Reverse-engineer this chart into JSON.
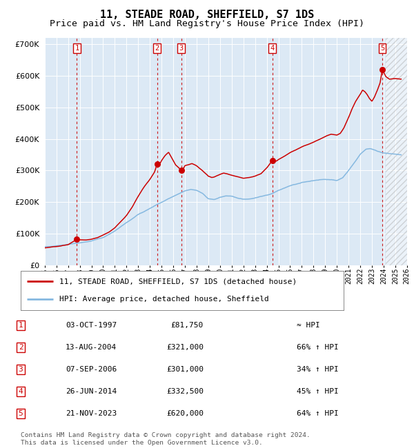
{
  "title": "11, STEADE ROAD, SHEFFIELD, S7 1DS",
  "subtitle": "Price paid vs. HM Land Registry's House Price Index (HPI)",
  "title_fontsize": 11,
  "subtitle_fontsize": 9.5,
  "background_color": "#dce9f5",
  "hpi_line_color": "#85b8e0",
  "price_line_color": "#cc0000",
  "marker_color": "#cc0000",
  "vline_color": "#cc0000",
  "ylim": [
    0,
    720000
  ],
  "yticks": [
    0,
    100000,
    200000,
    300000,
    400000,
    500000,
    600000,
    700000
  ],
  "xlim_start": 1995.0,
  "xlim_end": 2026.0,
  "hatch_start": 2024.2,
  "sales": [
    {
      "num": 1,
      "date_str": "03-OCT-1997",
      "year": 1997.75,
      "price": 81750,
      "hpi_pct": "≈ HPI"
    },
    {
      "num": 2,
      "date_str": "13-AUG-2004",
      "year": 2004.62,
      "price": 321000,
      "hpi_pct": "66% ↑ HPI"
    },
    {
      "num": 3,
      "date_str": "07-SEP-2006",
      "year": 2006.69,
      "price": 301000,
      "hpi_pct": "34% ↑ HPI"
    },
    {
      "num": 4,
      "date_str": "26-JUN-2014",
      "year": 2014.49,
      "price": 332500,
      "hpi_pct": "45% ↑ HPI"
    },
    {
      "num": 5,
      "date_str": "21-NOV-2023",
      "year": 2023.89,
      "price": 620000,
      "hpi_pct": "64% ↑ HPI"
    }
  ],
  "legend_line1": "11, STEADE ROAD, SHEFFIELD, S7 1DS (detached house)",
  "legend_line2": "HPI: Average price, detached house, Sheffield",
  "footer1": "Contains HM Land Registry data © Crown copyright and database right 2024.",
  "footer2": "This data is licensed under the Open Government Licence v3.0.",
  "hpi_anchors": [
    [
      1995.0,
      58000
    ],
    [
      1996.0,
      62000
    ],
    [
      1997.0,
      66000
    ],
    [
      1998.0,
      71000
    ],
    [
      1999.0,
      77000
    ],
    [
      2000.0,
      88000
    ],
    [
      2001.0,
      108000
    ],
    [
      2002.0,
      135000
    ],
    [
      2003.0,
      160000
    ],
    [
      2004.0,
      180000
    ],
    [
      2005.0,
      200000
    ],
    [
      2006.0,
      218000
    ],
    [
      2007.0,
      235000
    ],
    [
      2007.5,
      240000
    ],
    [
      2008.0,
      238000
    ],
    [
      2008.5,
      228000
    ],
    [
      2009.0,
      210000
    ],
    [
      2009.5,
      208000
    ],
    [
      2010.0,
      215000
    ],
    [
      2010.5,
      220000
    ],
    [
      2011.0,
      218000
    ],
    [
      2011.5,
      213000
    ],
    [
      2012.0,
      210000
    ],
    [
      2012.5,
      210000
    ],
    [
      2013.0,
      213000
    ],
    [
      2013.5,
      218000
    ],
    [
      2014.0,
      222000
    ],
    [
      2014.5,
      228000
    ],
    [
      2015.0,
      238000
    ],
    [
      2015.5,
      245000
    ],
    [
      2016.0,
      252000
    ],
    [
      2016.5,
      257000
    ],
    [
      2017.0,
      262000
    ],
    [
      2017.5,
      265000
    ],
    [
      2018.0,
      268000
    ],
    [
      2018.5,
      270000
    ],
    [
      2019.0,
      272000
    ],
    [
      2019.5,
      272000
    ],
    [
      2020.0,
      268000
    ],
    [
      2020.5,
      278000
    ],
    [
      2021.0,
      300000
    ],
    [
      2021.5,
      325000
    ],
    [
      2022.0,
      352000
    ],
    [
      2022.5,
      368000
    ],
    [
      2022.8,
      370000
    ],
    [
      2023.0,
      368000
    ],
    [
      2023.5,
      362000
    ],
    [
      2024.0,
      355000
    ],
    [
      2025.0,
      352000
    ],
    [
      2025.5,
      350000
    ]
  ],
  "price_anchors": [
    [
      1995.0,
      55000
    ],
    [
      1995.5,
      57000
    ],
    [
      1996.0,
      59000
    ],
    [
      1996.5,
      62000
    ],
    [
      1997.0,
      65000
    ],
    [
      1997.75,
      81750
    ],
    [
      1998.0,
      80000
    ],
    [
      1998.5,
      79000
    ],
    [
      1999.0,
      82000
    ],
    [
      1999.5,
      87000
    ],
    [
      2000.0,
      96000
    ],
    [
      2000.5,
      105000
    ],
    [
      2001.0,
      118000
    ],
    [
      2001.5,
      138000
    ],
    [
      2002.0,
      158000
    ],
    [
      2002.5,
      185000
    ],
    [
      2003.0,
      218000
    ],
    [
      2003.5,
      248000
    ],
    [
      2004.0,
      272000
    ],
    [
      2004.4,
      295000
    ],
    [
      2004.62,
      321000
    ],
    [
      2004.9,
      325000
    ],
    [
      2005.0,
      332000
    ],
    [
      2005.3,
      348000
    ],
    [
      2005.6,
      358000
    ],
    [
      2005.9,
      338000
    ],
    [
      2006.2,
      318000
    ],
    [
      2006.5,
      308000
    ],
    [
      2006.69,
      301000
    ],
    [
      2006.9,
      308000
    ],
    [
      2007.0,
      315000
    ],
    [
      2007.3,
      318000
    ],
    [
      2007.6,
      322000
    ],
    [
      2008.0,
      315000
    ],
    [
      2008.5,
      300000
    ],
    [
      2009.0,
      282000
    ],
    [
      2009.3,
      278000
    ],
    [
      2009.5,
      280000
    ],
    [
      2009.8,
      285000
    ],
    [
      2010.0,
      288000
    ],
    [
      2010.3,
      292000
    ],
    [
      2010.6,
      290000
    ],
    [
      2011.0,
      285000
    ],
    [
      2011.5,
      280000
    ],
    [
      2012.0,
      276000
    ],
    [
      2012.5,
      278000
    ],
    [
      2013.0,
      282000
    ],
    [
      2013.5,
      290000
    ],
    [
      2014.0,
      308000
    ],
    [
      2014.49,
      332500
    ],
    [
      2014.8,
      330000
    ],
    [
      2015.0,
      335000
    ],
    [
      2015.5,
      345000
    ],
    [
      2016.0,
      358000
    ],
    [
      2016.5,
      366000
    ],
    [
      2017.0,
      375000
    ],
    [
      2017.5,
      382000
    ],
    [
      2018.0,
      390000
    ],
    [
      2018.5,
      398000
    ],
    [
      2019.0,
      408000
    ],
    [
      2019.5,
      415000
    ],
    [
      2020.0,
      412000
    ],
    [
      2020.3,
      418000
    ],
    [
      2020.6,
      435000
    ],
    [
      2021.0,
      468000
    ],
    [
      2021.3,
      495000
    ],
    [
      2021.6,
      518000
    ],
    [
      2022.0,
      542000
    ],
    [
      2022.2,
      555000
    ],
    [
      2022.4,
      550000
    ],
    [
      2022.6,
      540000
    ],
    [
      2022.8,
      528000
    ],
    [
      2023.0,
      520000
    ],
    [
      2023.2,
      532000
    ],
    [
      2023.5,
      558000
    ],
    [
      2023.7,
      578000
    ],
    [
      2023.89,
      620000
    ],
    [
      2024.0,
      612000
    ],
    [
      2024.2,
      598000
    ],
    [
      2024.5,
      590000
    ],
    [
      2025.0,
      592000
    ],
    [
      2025.5,
      590000
    ]
  ]
}
